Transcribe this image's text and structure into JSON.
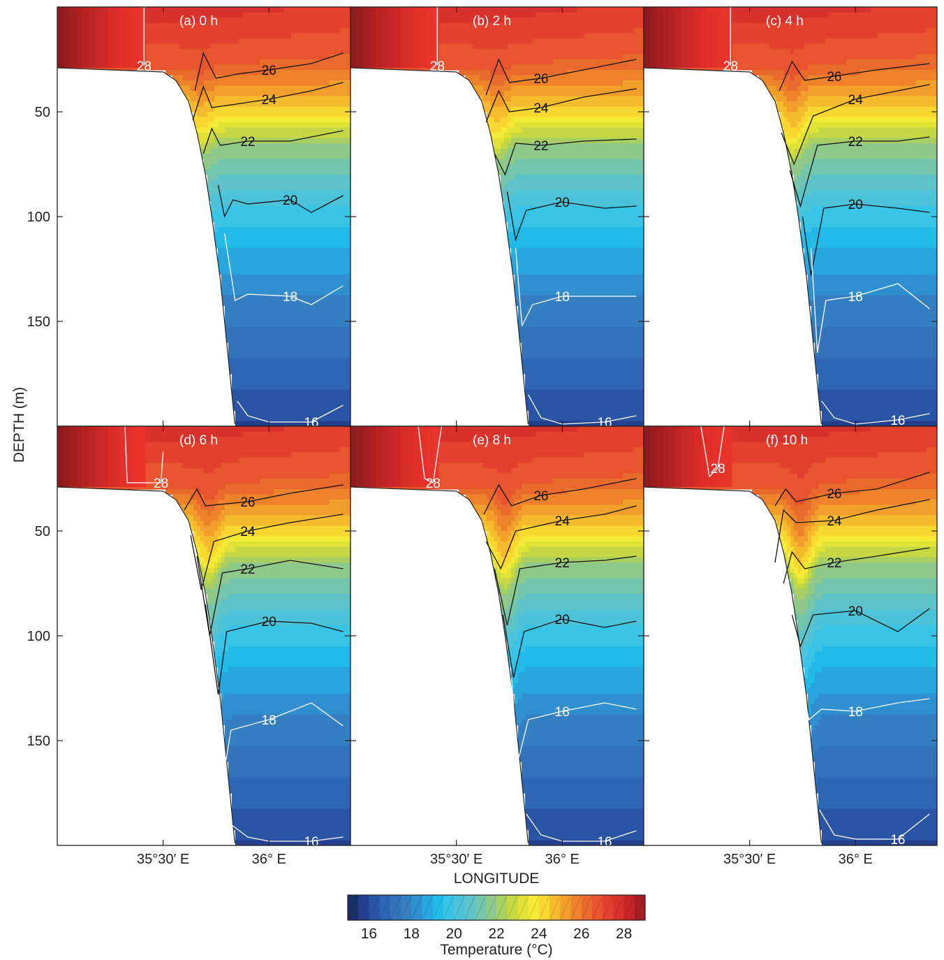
{
  "chart_data": {
    "type": "heatmap",
    "xlabel": "LONGITUDE",
    "ylabel": "DEPTH (m)",
    "x_ticks": [
      "35°30′ E",
      "36° E"
    ],
    "y_ticks": [
      "50",
      "100",
      "150"
    ],
    "ylim": [
      200,
      0
    ],
    "colorbar": {
      "label": "Temperature (°C)",
      "ticks": [
        "16",
        "18",
        "20",
        "22",
        "24",
        "26",
        "28"
      ],
      "levels": [
        15,
        15.5,
        16,
        16.5,
        17,
        17.5,
        18,
        18.5,
        19,
        19.5,
        20,
        20.5,
        21,
        21.5,
        22,
        22.5,
        23,
        23.5,
        24,
        24.5,
        25,
        25.5,
        26,
        26.5,
        27,
        27.5,
        28,
        28.5,
        29
      ],
      "colors": [
        "#1b2f6b",
        "#23408e",
        "#2a55a4",
        "#2f66b3",
        "#3273ba",
        "#337fc2",
        "#2f8fcf",
        "#27a7de",
        "#22bbe8",
        "#38c4e6",
        "#4dc3d9",
        "#5ec3c8",
        "#73c6ac",
        "#8ec98a",
        "#a9cf63",
        "#c5d844",
        "#e1e236",
        "#f5ea35",
        "#f8d731",
        "#f6bb2c",
        "#f29e2a",
        "#ee822a",
        "#ea6a2d",
        "#e7542e",
        "#e3402d",
        "#d9312b",
        "#c42529",
        "#a71d24"
      ]
    },
    "panels": [
      {
        "title": "(a) 0 h",
        "contours": [
          {
            "level": 28,
            "label": "28",
            "color": "white",
            "x": [
              35.41,
              35.41
            ],
            "y": [
              0,
              28
            ]
          },
          {
            "level": 26,
            "label": "26",
            "color": "black",
            "x": [
              35.65,
              35.69,
              35.75,
              35.85,
              36.0,
              36.2,
              36.35
            ],
            "y": [
              40,
              22,
              34,
              32,
              30,
              27,
              22
            ]
          },
          {
            "level": 24,
            "label": "24",
            "color": "black",
            "x": [
              35.64,
              35.69,
              35.73,
              35.8,
              36.0,
              36.2,
              36.35
            ],
            "y": [
              54,
              38,
              48,
              47,
              44,
              40,
              36
            ]
          },
          {
            "level": 22,
            "label": "22",
            "color": "black",
            "x": [
              35.69,
              35.73,
              35.77,
              35.9,
              36.1,
              36.35
            ],
            "y": [
              70,
              58,
              66,
              64,
              64,
              59
            ]
          },
          {
            "level": 20,
            "label": "20",
            "color": "black",
            "x": [
              35.76,
              35.79,
              35.83,
              35.9,
              36.1,
              36.2,
              36.35
            ],
            "y": [
              85,
              100,
              92,
              94,
              92,
              98,
              90
            ]
          },
          {
            "level": 18,
            "label": "18",
            "color": "white",
            "x": [
              35.79,
              35.84,
              35.9,
              36.1,
              36.2,
              36.35
            ],
            "y": [
              108,
              140,
              137,
              138,
              142,
              133
            ]
          },
          {
            "level": 16,
            "label": "16",
            "color": "white",
            "x": [
              35.85,
              35.9,
              36.0,
              36.2,
              36.35
            ],
            "y": [
              188,
              195,
              198,
              198,
              190
            ]
          }
        ]
      },
      {
        "title": "(b) 2 h",
        "contours": [
          {
            "level": 28,
            "label": "28",
            "color": "white",
            "x": [
              35.41,
              35.41
            ],
            "y": [
              0,
              28
            ]
          },
          {
            "level": 26,
            "label": "26",
            "color": "black",
            "x": [
              35.64,
              35.7,
              35.75,
              35.9,
              36.1,
              36.35
            ],
            "y": [
              42,
              25,
              36,
              34,
              30,
              25
            ]
          },
          {
            "level": 24,
            "label": "24",
            "color": "black",
            "x": [
              35.64,
              35.7,
              35.75,
              35.9,
              36.1,
              36.35
            ],
            "y": [
              55,
              40,
              50,
              48,
              43,
              39
            ]
          },
          {
            "level": 22,
            "label": "22",
            "color": "black",
            "x": [
              35.68,
              35.73,
              35.78,
              35.9,
              36.1,
              36.35
            ],
            "y": [
              70,
              80,
              65,
              66,
              64,
              63
            ]
          },
          {
            "level": 20,
            "label": "20",
            "color": "black",
            "x": [
              35.74,
              35.78,
              35.83,
              36.0,
              36.2,
              36.35
            ],
            "y": [
              88,
              111,
              97,
              93,
              96,
              95
            ]
          },
          {
            "level": 18,
            "label": "18",
            "color": "white",
            "x": [
              35.78,
              35.81,
              35.86,
              36.0,
              36.2,
              36.35
            ],
            "y": [
              115,
              152,
              142,
              138,
              138,
              138
            ]
          },
          {
            "level": 16,
            "label": "16",
            "color": "white",
            "x": [
              35.84,
              35.9,
              36.0,
              36.2,
              36.35
            ],
            "y": [
              185,
              196,
              199,
              198,
              195
            ]
          }
        ]
      },
      {
        "title": "(c) 4 h",
        "contours": [
          {
            "level": 28,
            "label": "28",
            "color": "white",
            "x": [
              35.41,
              35.41
            ],
            "y": [
              0,
              28
            ]
          },
          {
            "level": 26,
            "label": "26",
            "color": "black",
            "x": [
              35.64,
              35.7,
              35.76,
              35.9,
              36.1,
              36.35
            ],
            "y": [
              40,
              26,
              35,
              33,
              30,
              27
            ]
          },
          {
            "level": 24,
            "label": "24",
            "color": "black",
            "x": [
              35.65,
              35.71,
              35.8,
              36.0,
              36.2,
              36.35
            ],
            "y": [
              60,
              75,
              52,
              44,
              40,
              37
            ]
          },
          {
            "level": 22,
            "label": "22",
            "color": "black",
            "x": [
              35.69,
              35.74,
              35.82,
              36.0,
              36.2,
              36.35
            ],
            "y": [
              78,
              95,
              66,
              64,
              64,
              62
            ]
          },
          {
            "level": 20,
            "label": "20",
            "color": "black",
            "x": [
              35.75,
              35.79,
              35.85,
              36.0,
              36.2,
              36.35
            ],
            "y": [
              100,
              128,
              96,
              94,
              96,
              98
            ]
          },
          {
            "level": 18,
            "label": "18",
            "color": "white",
            "x": [
              35.79,
              35.82,
              35.86,
              36.0,
              36.2,
              36.35
            ],
            "y": [
              115,
              165,
              140,
              138,
              132,
              144
            ]
          },
          {
            "level": 16,
            "label": "16",
            "color": "white",
            "x": [
              35.84,
              35.9,
              36.0,
              36.2,
              36.35
            ],
            "y": [
              188,
              196,
              199,
              197,
              194
            ]
          }
        ]
      },
      {
        "title": "(d) 6 h",
        "contours": [
          {
            "level": 28,
            "label": "28",
            "color": "white",
            "x": [
              35.32,
              35.33,
              35.49,
              35.5
            ],
            "y": [
              0,
              27,
              27,
              12
            ]
          },
          {
            "level": 26,
            "label": "26",
            "color": "black",
            "x": [
              35.6,
              35.66,
              35.7,
              35.9,
              36.1,
              36.35
            ],
            "y": [
              40,
              30,
              38,
              36,
              32,
              28
            ]
          },
          {
            "level": 24,
            "label": "24",
            "color": "black",
            "x": [
              35.63,
              35.68,
              35.74,
              35.9,
              36.1,
              36.35
            ],
            "y": [
              52,
              78,
              55,
              50,
              46,
              42
            ]
          },
          {
            "level": 22,
            "label": "22",
            "color": "black",
            "x": [
              35.66,
              35.72,
              35.78,
              35.9,
              36.1,
              36.35
            ],
            "y": [
              62,
              100,
              70,
              68,
              64,
              68
            ]
          },
          {
            "level": 20,
            "label": "20",
            "color": "black",
            "x": [
              35.7,
              35.76,
              35.8,
              36.0,
              36.2,
              36.35
            ],
            "y": [
              85,
              128,
              98,
              93,
              94,
              98
            ]
          },
          {
            "level": 18,
            "label": "18",
            "color": "white",
            "x": [
              35.74,
              35.78,
              35.82,
              36.0,
              36.2,
              36.35
            ],
            "y": [
              120,
              170,
              145,
              140,
              132,
              143
            ]
          },
          {
            "level": 16,
            "label": "16",
            "color": "white",
            "x": [
              35.82,
              35.9,
              36.0,
              36.2,
              36.35
            ],
            "y": [
              190,
              196,
              198,
              198,
              196
            ]
          }
        ]
      },
      {
        "title": "(e) 8 h",
        "contours": [
          {
            "level": 28,
            "label": "28",
            "color": "white",
            "x": [
              35.32,
              35.35,
              35.39,
              35.43
            ],
            "y": [
              0,
              25,
              27,
              0
            ]
          },
          {
            "level": 26,
            "label": "26",
            "color": "black",
            "x": [
              35.63,
              35.7,
              35.76,
              35.9,
              36.1,
              36.35
            ],
            "y": [
              42,
              28,
              38,
              33,
              30,
              25
            ]
          },
          {
            "level": 24,
            "label": "24",
            "color": "black",
            "x": [
              35.64,
              35.71,
              35.78,
              36.0,
              36.2,
              36.35
            ],
            "y": [
              55,
              68,
              50,
              45,
              42,
              38
            ]
          },
          {
            "level": 22,
            "label": "22",
            "color": "black",
            "x": [
              35.68,
              35.74,
              35.8,
              36.0,
              36.2,
              36.35
            ],
            "y": [
              68,
              95,
              68,
              65,
              64,
              62
            ]
          },
          {
            "level": 20,
            "label": "20",
            "color": "black",
            "x": [
              35.72,
              35.77,
              35.82,
              36.0,
              36.2,
              36.35
            ],
            "y": [
              90,
              120,
              98,
              92,
              96,
              93
            ]
          },
          {
            "level": 18,
            "label": "18",
            "color": "white",
            "x": [
              35.76,
              35.79,
              35.84,
              36.0,
              36.2,
              36.35
            ],
            "y": [
              120,
              160,
              140,
              136,
              132,
              135
            ]
          },
          {
            "level": 16,
            "label": "16",
            "color": "white",
            "x": [
              35.83,
              35.9,
              36.0,
              36.2,
              36.35
            ],
            "y": [
              185,
              195,
              198,
              198,
              193
            ]
          }
        ]
      },
      {
        "title": "(f) 10 h",
        "contours": [
          {
            "level": 28,
            "label": "28",
            "color": "white",
            "x": [
              35.27,
              35.31,
              35.35,
              35.38
            ],
            "y": [
              0,
              24,
              20,
              0
            ]
          },
          {
            "level": 26,
            "label": "26",
            "color": "black",
            "x": [
              35.62,
              35.67,
              35.72,
              35.9,
              36.1,
              36.35
            ],
            "y": [
              38,
              30,
              36,
              32,
              30,
              22
            ]
          },
          {
            "level": 24,
            "label": "24",
            "color": "black",
            "x": [
              35.62,
              35.66,
              35.72,
              35.9,
              36.1,
              36.35
            ],
            "y": [
              65,
              40,
              46,
              45,
              40,
              35
            ]
          },
          {
            "level": 22,
            "label": "22",
            "color": "black",
            "x": [
              35.66,
              35.7,
              35.76,
              35.9,
              36.1,
              36.35
            ],
            "y": [
              75,
              60,
              68,
              65,
              62,
              58
            ]
          },
          {
            "level": 20,
            "label": "20",
            "color": "black",
            "x": [
              35.7,
              35.74,
              35.8,
              36.0,
              36.2,
              36.35
            ],
            "y": [
              90,
              105,
              90,
              88,
              98,
              87
            ]
          },
          {
            "level": 18,
            "label": "18",
            "color": "white",
            "x": [
              35.74,
              35.78,
              35.84,
              36.0,
              36.2,
              36.35
            ],
            "y": [
              120,
              140,
              135,
              136,
              132,
              130
            ]
          },
          {
            "level": 16,
            "label": "16",
            "color": "white",
            "x": [
              35.83,
              35.9,
              36.0,
              36.2,
              36.35
            ],
            "y": [
              183,
              195,
              197,
              197,
              185
            ]
          }
        ]
      }
    ]
  }
}
